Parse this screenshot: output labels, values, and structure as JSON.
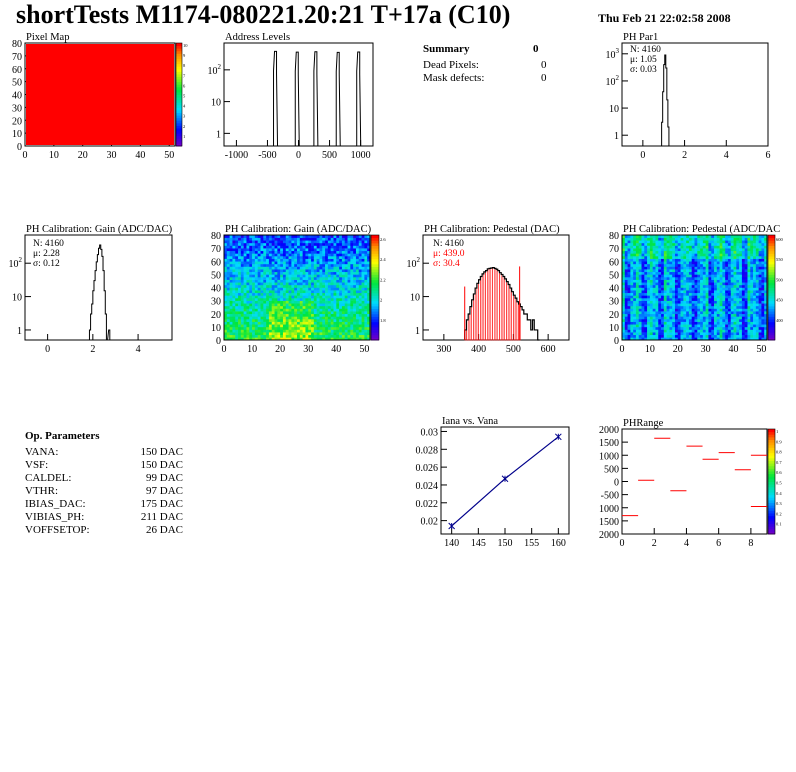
{
  "header": {
    "title": "shortTests M1174-080221.20:21 T+17a (C10)",
    "date": "Thu Feb 21 22:02:58 2008"
  },
  "summary": {
    "title": "Summary",
    "title_value": "0",
    "rows": [
      {
        "label": "Dead Pixels:",
        "value": "0"
      },
      {
        "label": "Mask defects:",
        "value": "0"
      }
    ]
  },
  "op_params": {
    "title": "Op. Parameters",
    "rows": [
      {
        "label": "VANA:",
        "value": "150 DAC"
      },
      {
        "label": "VSF:",
        "value": "150 DAC"
      },
      {
        "label": "CALDEL:",
        "value": "99 DAC"
      },
      {
        "label": "VTHR:",
        "value": "97 DAC"
      },
      {
        "label": "IBIAS_DAC:",
        "value": "175 DAC"
      },
      {
        "label": "VIBIAS_PH:",
        "value": "211 DAC"
      },
      {
        "label": "VOFFSETOP:",
        "value": "26 DAC"
      }
    ]
  },
  "colors": {
    "hist": "#000000",
    "red": "#ff0000",
    "blue": "#00008b"
  },
  "chart_data": [
    {
      "id": "pixelmap",
      "type": "heatmap",
      "title": "Pixel Map",
      "xlim": [
        0,
        52
      ],
      "ylim": [
        0,
        80
      ],
      "xticks": [
        "0",
        "10",
        "20",
        "30",
        "40",
        "50"
      ],
      "yticks": [
        "0",
        "10",
        "20",
        "30",
        "40",
        "50",
        "60",
        "70",
        "80"
      ],
      "fill": "uniform maximum (red)",
      "zticks": [
        "1",
        "2",
        "3",
        "4",
        "5",
        "6",
        "7",
        "8",
        "9",
        "10"
      ]
    },
    {
      "id": "addr",
      "type": "bar",
      "title": "Address Levels",
      "xlim": [
        -1200,
        1200
      ],
      "ylim": [
        0.4,
        700
      ],
      "log_y": true,
      "xticks": [
        "-1000",
        "-500",
        "0",
        "500",
        "1000"
      ],
      "yticks": [
        "1",
        "10",
        "10^2"
      ],
      "peaks": [
        {
          "x": -370,
          "y": 380
        },
        {
          "x": -20,
          "y": 360
        },
        {
          "x": 280,
          "y": 370
        },
        {
          "x": 640,
          "y": 355
        },
        {
          "x": 970,
          "y": 365
        }
      ]
    },
    {
      "id": "phpar1",
      "type": "bar",
      "title": "PH Par1",
      "xlim": [
        -1,
        6
      ],
      "ylim": [
        0.4,
        2500
      ],
      "log_y": true,
      "xticks": [
        "0",
        "2",
        "4",
        "6"
      ],
      "yticks": [
        "1",
        "10",
        "10^2",
        "10^3"
      ],
      "stats": [
        "N: 4160",
        "μ: 1.05",
        "σ: 0.03"
      ],
      "hist": [
        [
          0.85,
          0
        ],
        [
          0.9,
          3
        ],
        [
          0.95,
          40
        ],
        [
          1.0,
          400
        ],
        [
          1.05,
          900
        ],
        [
          1.1,
          300
        ],
        [
          1.15,
          20
        ],
        [
          1.2,
          2
        ],
        [
          1.25,
          0
        ]
      ]
    },
    {
      "id": "gain",
      "type": "bar",
      "title": "PH Calibration: Gain (ADC/DAC)",
      "xlim": [
        -1,
        5.5
      ],
      "ylim": [
        0.5,
        700
      ],
      "log_y": true,
      "xticks": [
        "0",
        "2",
        "4"
      ],
      "yticks": [
        "1",
        "10",
        "10^2"
      ],
      "stats": [
        "N: 4160",
        "μ: 2.28",
        "σ: 0.12"
      ],
      "hist": [
        [
          1.8,
          0
        ],
        [
          1.85,
          1
        ],
        [
          1.9,
          3
        ],
        [
          1.95,
          6
        ],
        [
          2.0,
          15
        ],
        [
          2.05,
          30
        ],
        [
          2.1,
          60
        ],
        [
          2.15,
          110
        ],
        [
          2.2,
          180
        ],
        [
          2.25,
          280
        ],
        [
          2.3,
          350
        ],
        [
          2.35,
          260
        ],
        [
          2.4,
          160
        ],
        [
          2.45,
          60
        ],
        [
          2.5,
          15
        ],
        [
          2.55,
          3
        ],
        [
          2.6,
          0
        ],
        [
          2.7,
          1
        ],
        [
          2.75,
          0
        ]
      ]
    },
    {
      "id": "gainmap",
      "type": "heatmap",
      "title": "PH Calibration: Gain (ADC/DAC)",
      "xlim": [
        0,
        52
      ],
      "ylim": [
        0,
        80
      ],
      "xticks": [
        "0",
        "10",
        "20",
        "30",
        "40",
        "50"
      ],
      "yticks": [
        "0",
        "10",
        "20",
        "30",
        "40",
        "50",
        "60",
        "70",
        "80"
      ],
      "zticks": [
        "1.8",
        "2",
        "2.2",
        "2.4",
        "2.6"
      ]
    },
    {
      "id": "ped",
      "type": "bar",
      "title": "PH Calibration: Pedestal (DAC)",
      "xlim": [
        240,
        660
      ],
      "ylim": [
        0.5,
        700
      ],
      "log_y": true,
      "xticks": [
        "300",
        "400",
        "500",
        "600"
      ],
      "yticks": [
        "1",
        "10",
        "10^2"
      ],
      "stats": [
        "N: 4160",
        "μ: 439.0",
        "σ: 30.4"
      ],
      "fit_range": [
        360,
        518
      ],
      "hist": [
        [
          360,
          1
        ],
        [
          365,
          2
        ],
        [
          370,
          3
        ],
        [
          375,
          5
        ],
        [
          380,
          8
        ],
        [
          385,
          12
        ],
        [
          390,
          18
        ],
        [
          395,
          25
        ],
        [
          400,
          32
        ],
        [
          405,
          40
        ],
        [
          410,
          48
        ],
        [
          415,
          55
        ],
        [
          420,
          60
        ],
        [
          425,
          68
        ],
        [
          430,
          70
        ],
        [
          435,
          72
        ],
        [
          440,
          74
        ],
        [
          445,
          70
        ],
        [
          450,
          66
        ],
        [
          455,
          60
        ],
        [
          460,
          52
        ],
        [
          465,
          46
        ],
        [
          470,
          40
        ],
        [
          475,
          34
        ],
        [
          480,
          28
        ],
        [
          485,
          23
        ],
        [
          490,
          18
        ],
        [
          495,
          14
        ],
        [
          500,
          11
        ],
        [
          505,
          9
        ],
        [
          510,
          7
        ],
        [
          515,
          6
        ],
        [
          520,
          5
        ],
        [
          525,
          4
        ],
        [
          530,
          3
        ],
        [
          535,
          3
        ],
        [
          540,
          2
        ],
        [
          545,
          2
        ],
        [
          550,
          1
        ],
        [
          555,
          2
        ],
        [
          560,
          1
        ],
        [
          565,
          1
        ],
        [
          570,
          0
        ]
      ]
    },
    {
      "id": "pedmap",
      "type": "heatmap",
      "title": "PH Calibration: Pedestal (ADC/DAC",
      "xlim": [
        0,
        52
      ],
      "ylim": [
        0,
        80
      ],
      "xticks": [
        "0",
        "10",
        "20",
        "30",
        "40",
        "50"
      ],
      "yticks": [
        "0",
        "10",
        "20",
        "30",
        "40",
        "50",
        "60",
        "70",
        "80"
      ],
      "zticks": [
        "400",
        "450",
        "500",
        "550",
        "600"
      ]
    },
    {
      "id": "iana",
      "type": "line",
      "title": "Iana vs. Vana",
      "xlim": [
        138,
        162
      ],
      "ylim": [
        0.0185,
        0.0305
      ],
      "xticks": [
        "140",
        "145",
        "150",
        "155",
        "160"
      ],
      "yticks": [
        "0.02",
        "0.022",
        "0.024",
        "0.026",
        "0.028",
        "0.03"
      ],
      "points": [
        [
          140,
          0.0194
        ],
        [
          150,
          0.0247
        ],
        [
          160,
          0.0294
        ]
      ]
    },
    {
      "id": "phrange",
      "type": "scatter",
      "title": "PHRange",
      "xlim": [
        0,
        9
      ],
      "ylim": [
        -2000,
        2000
      ],
      "xticks": [
        "0",
        "2",
        "4",
        "6",
        "8"
      ],
      "yticks": [
        "2000",
        "1500",
        "1000",
        "500",
        "0",
        "-500",
        "1000",
        "1500",
        "2000"
      ],
      "zticks": [
        "0.1",
        "0.2",
        "0.3",
        "0.4",
        "0.5",
        "0.6",
        "0.7",
        "0.8",
        "0.9",
        "1"
      ],
      "segments": [
        [
          0,
          -1300
        ],
        [
          1,
          50
        ],
        [
          2,
          1650
        ],
        [
          3,
          -350
        ],
        [
          4,
          1350
        ],
        [
          5,
          850
        ],
        [
          6,
          1100
        ],
        [
          7,
          450
        ],
        [
          8,
          1000
        ],
        [
          8,
          -950
        ]
      ]
    }
  ]
}
